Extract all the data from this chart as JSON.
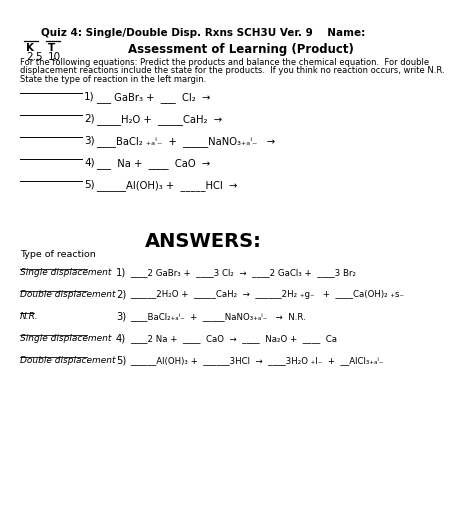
{
  "title": "Quiz 4: Single/Double Disp. Rxns SCH3U Ver. 9    Name:",
  "subtitle": "Assessment of Learning (Product)",
  "k_label": "K",
  "k_val": "2.5",
  "t_label": "T",
  "t_val": "10",
  "instructions1": "For the following equations: Predict the products and balance the chemical equation.  For double",
  "instructions2": "displacement reactions include the state for the products.  If you think no reaction occurs, write N.R.",
  "instructions3": "State the type of reaction in the left margin.",
  "q_equations": [
    "___ GaBr₃ +  ___  Cl₂  →",
    "_____H₂O +  _____CaH₂  →",
    "____BaCl₂ ₊ₐⁱ₋  +  _____NaNO₃₊ₐⁱ₋   →",
    "___  Na +  ____  CaO  →",
    "______Al(OH)₃ +  _____HCl  →"
  ],
  "answers_title": "ANSWERS:",
  "type_label": "Type of reaction",
  "answer_types": [
    "Single displacement",
    "Double displacement",
    "N.R.",
    "Single displacement",
    "Double displacement"
  ],
  "answer_type_underline": [
    true,
    true,
    true,
    true,
    true
  ],
  "answer_nums": [
    "1)",
    "2)",
    "3)",
    "4)",
    "5)"
  ],
  "answer_equations": [
    "____2 GaBr₃ +  ____3 Cl₂  →  ____2 GaCl₃ +  ____3 Br₂",
    "______2H₂O +  _____CaH₂  →  ______2H₂ ₊g₋   +  ____Ca(OH)₂ ₊s₋",
    "____BaCl₂₊ₐⁱ₋  +  _____NaNO₃₊ₐⁱ₋   →  N.R.",
    "____2 Na +  ____  CaO  →  ____  Na₂O +  ____  Ca",
    "______Al(OH)₃ +  ______3HCl  →  ____3H₂O ₊l₋  +  __AlCl₃₊ₐⁱ₋"
  ],
  "bg_color": "#ffffff",
  "text_color": "#000000"
}
